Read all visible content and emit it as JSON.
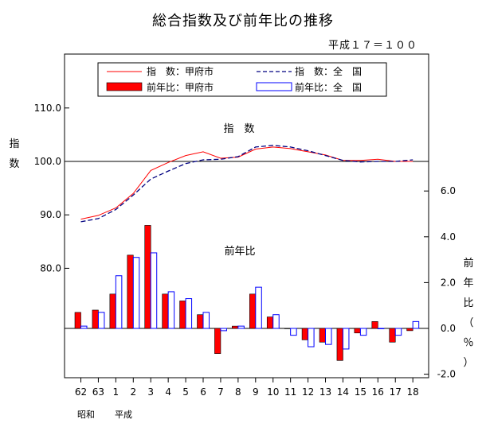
{
  "chart_data": {
    "type": "bar",
    "title": "総合指数及び前年比の推移",
    "subtitle": "平成１７＝１００",
    "categories": [
      "62",
      "63",
      "1",
      "2",
      "3",
      "4",
      "5",
      "6",
      "7",
      "8",
      "9",
      "10",
      "11",
      "12",
      "13",
      "14",
      "15",
      "16",
      "17",
      "18"
    ],
    "era_labels": [
      "昭和",
      "平成"
    ],
    "index_axis": {
      "label": "指数",
      "ticks": [
        "80.0",
        "90.0",
        "100.0",
        "110.0"
      ],
      "ylim": [
        70.0,
        120.0
      ]
    },
    "yoy_axis": {
      "label": "前年比（％）",
      "ticks": [
        "-2.0",
        "0.0",
        "2.0",
        "4.0",
        "6.0"
      ],
      "ylim": [
        -2.0,
        7.5
      ]
    },
    "annotations": {
      "index": "指　数",
      "yoy": "前年比"
    },
    "legend": {
      "position": "top",
      "entries": [
        "指　数：甲府市",
        "指　数：全　国",
        "前年比：甲府市",
        "前年比：全　国"
      ]
    },
    "series": [
      {
        "name": "指　数：甲府市",
        "kind": "line",
        "axis": "index",
        "color": "#ff0000",
        "dash": "solid",
        "values": [
          89.2,
          89.9,
          91.3,
          94.0,
          98.3,
          99.8,
          101.1,
          101.8,
          100.6,
          100.8,
          102.3,
          102.7,
          102.4,
          101.8,
          101.2,
          100.2,
          100.2,
          100.4,
          100.0,
          100.0
        ]
      },
      {
        "name": "指　数：全　国",
        "kind": "line",
        "axis": "index",
        "color": "#000080",
        "dash": "dashed",
        "values": [
          88.7,
          89.3,
          91.0,
          93.7,
          96.7,
          98.2,
          99.6,
          100.3,
          100.4,
          100.9,
          102.7,
          103.0,
          102.7,
          102.0,
          101.1,
          100.2,
          99.9,
          100.0,
          100.0,
          100.3
        ]
      },
      {
        "name": "前年比：甲府市",
        "kind": "bar",
        "axis": "yoy",
        "color": "#ff0000",
        "values": [
          0.7,
          0.8,
          1.5,
          3.2,
          4.5,
          1.5,
          1.2,
          0.6,
          -1.1,
          0.1,
          1.5,
          0.5,
          0.0,
          -0.5,
          -0.6,
          -1.4,
          -0.2,
          0.3,
          -0.6,
          -0.1
        ]
      },
      {
        "name": "前年比：全　国",
        "kind": "bar",
        "axis": "yoy",
        "color": "#0000ff",
        "values": [
          0.1,
          0.7,
          2.3,
          3.1,
          3.3,
          1.6,
          1.3,
          0.7,
          -0.1,
          0.1,
          1.8,
          0.6,
          -0.3,
          -0.8,
          -0.7,
          -0.9,
          -0.3,
          0.0,
          -0.3,
          0.3
        ]
      }
    ]
  }
}
